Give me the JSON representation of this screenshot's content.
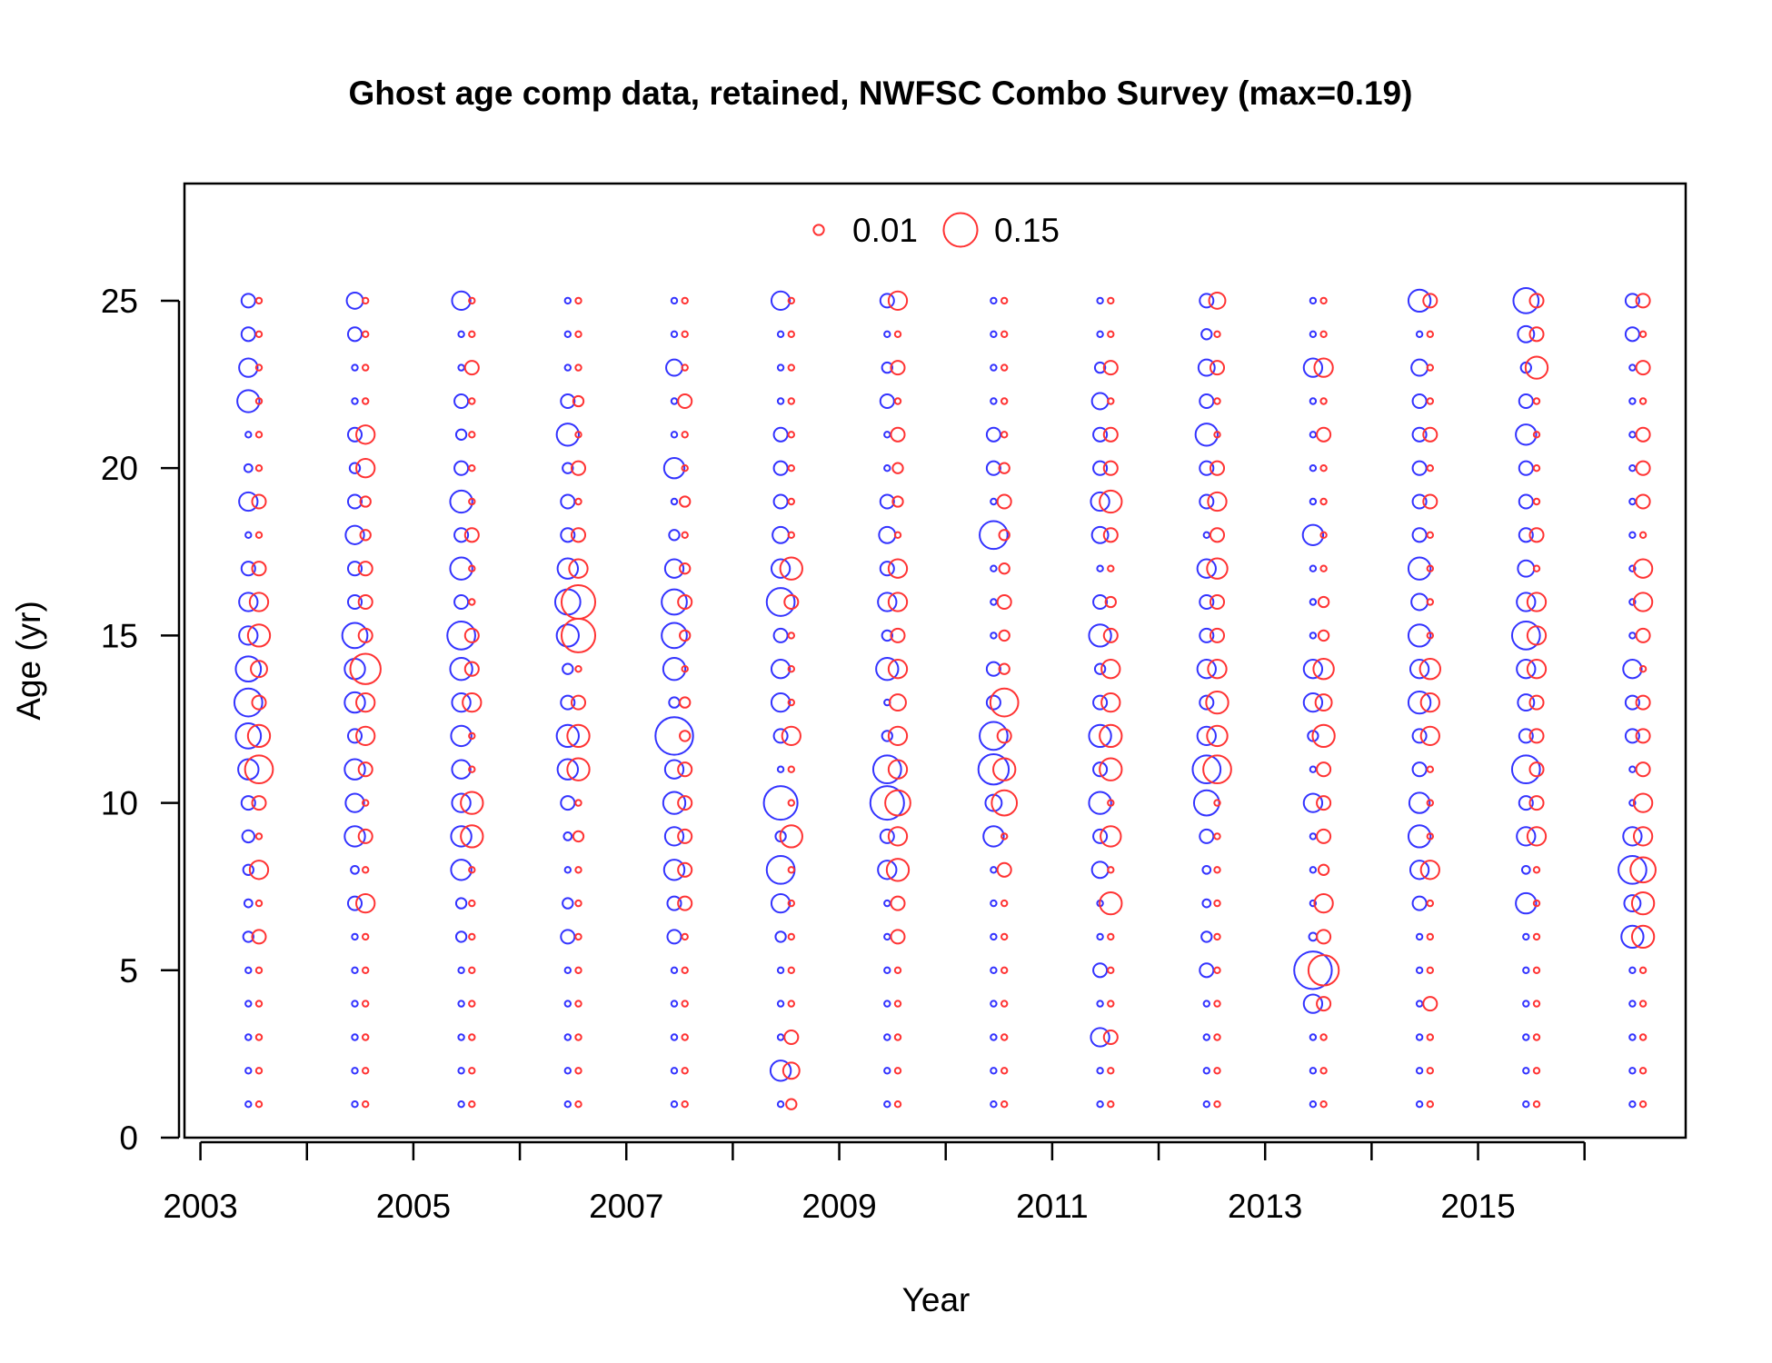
{
  "colors": {
    "series_a": "#3333ff",
    "series_b": "#ff3333",
    "axis": "#000000",
    "background": "#ffffff"
  },
  "chart_data": {
    "type": "scatter",
    "subtype": "bubble",
    "title": "Ghost age comp data, retained, NWFSC Combo Survey (max=0.19)",
    "xlabel": "Year",
    "ylabel": "Age (yr)",
    "xlim": [
      2002.85,
      2016.95
    ],
    "ylim": [
      0,
      28.5
    ],
    "x_ticks": [
      2003,
      2004,
      2005,
      2006,
      2007,
      2008,
      2009,
      2010,
      2011,
      2012,
      2013,
      2014,
      2015,
      2016
    ],
    "x_tick_labels": [
      "2003",
      "2005",
      "2007",
      "2009",
      "2011",
      "2013",
      "2015"
    ],
    "y_ticks": [
      0,
      5,
      10,
      15,
      20,
      25
    ],
    "y_tick_labels": [
      "0",
      "5",
      "10",
      "15",
      "20",
      "25"
    ],
    "legend": {
      "placement": "top-center",
      "entries": [
        {
          "label": "0.01",
          "value": 0.01
        },
        {
          "label": "0.15",
          "value": 0.15
        }
      ]
    },
    "max_value": 0.19,
    "grid": false,
    "ages": [
      1,
      2,
      3,
      4,
      5,
      6,
      7,
      8,
      9,
      10,
      11,
      12,
      13,
      14,
      15,
      16,
      17,
      18,
      19,
      20,
      21,
      22,
      23,
      24,
      25
    ],
    "series": [
      {
        "color_key": "series_a",
        "years": [
          2003.45,
          2004.45,
          2005.45,
          2006.45,
          2007.45,
          2008.45,
          2009.45,
          2010.45,
          2011.45,
          2012.45,
          2013.45,
          2014.45,
          2015.45,
          2016.45
        ],
        "values": [
          [
            0.002,
            0.002,
            0.002,
            0.002,
            0.002,
            0.01,
            0.005,
            0.01,
            0.015,
            0.02,
            0.05,
            0.08,
            0.1,
            0.08,
            0.04,
            0.04,
            0.02,
            0.002,
            0.04,
            0.005,
            0.002,
            0.06,
            0.04,
            0.02,
            0.02
          ],
          [
            0.002,
            0.002,
            0.002,
            0.002,
            0.002,
            0.002,
            0.02,
            0.005,
            0.05,
            0.04,
            0.05,
            0.02,
            0.05,
            0.05,
            0.08,
            0.02,
            0.02,
            0.04,
            0.02,
            0.01,
            0.02,
            0.002,
            0.002,
            0.02,
            0.03
          ],
          [
            0.002,
            0.002,
            0.002,
            0.002,
            0.002,
            0.01,
            0.01,
            0.05,
            0.05,
            0.04,
            0.04,
            0.05,
            0.04,
            0.06,
            0.1,
            0.02,
            0.06,
            0.02,
            0.06,
            0.02,
            0.01,
            0.02,
            0.002,
            0.002,
            0.04
          ],
          [
            0.002,
            0.002,
            0.002,
            0.002,
            0.002,
            0.02,
            0.01,
            0.002,
            0.005,
            0.02,
            0.05,
            0.06,
            0.02,
            0.01,
            0.06,
            0.08,
            0.05,
            0.02,
            0.02,
            0.01,
            0.06,
            0.02,
            0.002,
            0.002,
            0.002
          ],
          [
            0.002,
            0.002,
            0.002,
            0.002,
            0.002,
            0.02,
            0.02,
            0.05,
            0.04,
            0.06,
            0.04,
            0.19,
            0.01,
            0.06,
            0.08,
            0.08,
            0.04,
            0.01,
            0.002,
            0.05,
            0.002,
            0.002,
            0.03,
            0.002,
            0.002
          ],
          [
            0.002,
            0.05,
            0.002,
            0.002,
            0.002,
            0.01,
            0.04,
            0.1,
            0.01,
            0.15,
            0.002,
            0.02,
            0.04,
            0.04,
            0.02,
            0.1,
            0.04,
            0.03,
            0.02,
            0.02,
            0.02,
            0.002,
            0.002,
            0.002,
            0.04
          ],
          [
            0.002,
            0.002,
            0.002,
            0.002,
            0.002,
            0.002,
            0.002,
            0.04,
            0.02,
            0.15,
            0.1,
            0.01,
            0.002,
            0.06,
            0.01,
            0.04,
            0.02,
            0.03,
            0.02,
            0.002,
            0.002,
            0.02,
            0.01,
            0.002,
            0.02
          ],
          [
            0.002,
            0.002,
            0.002,
            0.002,
            0.002,
            0.002,
            0.002,
            0.002,
            0.05,
            0.03,
            0.12,
            0.1,
            0.02,
            0.02,
            0.002,
            0.002,
            0.002,
            0.1,
            0.002,
            0.02,
            0.02,
            0.002,
            0.002,
            0.002,
            0.002
          ],
          [
            0.002,
            0.002,
            0.04,
            0.002,
            0.02,
            0.002,
            0.002,
            0.03,
            0.02,
            0.06,
            0.02,
            0.06,
            0.02,
            0.01,
            0.06,
            0.02,
            0.002,
            0.03,
            0.04,
            0.02,
            0.02,
            0.03,
            0.01,
            0.002,
            0.002
          ],
          [
            0.002,
            0.002,
            0.002,
            0.002,
            0.02,
            0.01,
            0.005,
            0.005,
            0.02,
            0.08,
            0.1,
            0.04,
            0.02,
            0.04,
            0.02,
            0.02,
            0.04,
            0.002,
            0.02,
            0.02,
            0.06,
            0.02,
            0.03,
            0.01,
            0.02
          ],
          [
            0.002,
            0.002,
            0.002,
            0.04,
            0.19,
            0.005,
            0.002,
            0.002,
            0.002,
            0.04,
            0.002,
            0.01,
            0.04,
            0.04,
            0.002,
            0.002,
            0.002,
            0.05,
            0.002,
            0.002,
            0.002,
            0.002,
            0.04,
            0.002,
            0.002
          ],
          [
            0.002,
            0.002,
            0.002,
            0.002,
            0.002,
            0.002,
            0.02,
            0.04,
            0.06,
            0.05,
            0.02,
            0.02,
            0.06,
            0.04,
            0.06,
            0.03,
            0.06,
            0.02,
            0.02,
            0.02,
            0.02,
            0.02,
            0.03,
            0.002,
            0.06
          ],
          [
            0.002,
            0.002,
            0.002,
            0.002,
            0.002,
            0.002,
            0.05,
            0.005,
            0.04,
            0.02,
            0.1,
            0.02,
            0.03,
            0.04,
            0.1,
            0.04,
            0.03,
            0.02,
            0.02,
            0.02,
            0.05,
            0.02,
            0.01,
            0.03,
            0.08
          ],
          [
            0.002,
            0.002,
            0.002,
            0.002,
            0.002,
            0.06,
            0.03,
            0.1,
            0.04,
            0.002,
            0.002,
            0.02,
            0.02,
            0.04,
            0.002,
            0.002,
            0.002,
            0.002,
            0.002,
            0.002,
            0.002,
            0.002,
            0.002,
            0.02,
            0.02
          ]
        ]
      },
      {
        "color_key": "series_b",
        "years": [
          2003.55,
          2004.55,
          2005.55,
          2006.55,
          2007.55,
          2008.55,
          2009.55,
          2010.55,
          2011.55,
          2012.55,
          2013.55,
          2014.55,
          2015.55,
          2016.55
        ],
        "values": [
          [
            0.002,
            0.002,
            0.002,
            0.002,
            0.002,
            0.02,
            0.002,
            0.04,
            0.002,
            0.02,
            0.1,
            0.06,
            0.02,
            0.03,
            0.06,
            0.04,
            0.02,
            0.002,
            0.02,
            0.002,
            0.002,
            0.002,
            0.002,
            0.002,
            0.002
          ],
          [
            0.002,
            0.002,
            0.002,
            0.002,
            0.002,
            0.002,
            0.04,
            0.002,
            0.02,
            0.002,
            0.02,
            0.04,
            0.04,
            0.12,
            0.02,
            0.02,
            0.02,
            0.01,
            0.01,
            0.04,
            0.04,
            0.002,
            0.002,
            0.002,
            0.002
          ],
          [
            0.002,
            0.002,
            0.002,
            0.002,
            0.002,
            0.002,
            0.002,
            0.002,
            0.06,
            0.06,
            0.002,
            0.002,
            0.04,
            0.02,
            0.02,
            0.002,
            0.002,
            0.02,
            0.002,
            0.002,
            0.002,
            0.002,
            0.02,
            0.002,
            0.002
          ],
          [
            0.002,
            0.002,
            0.002,
            0.002,
            0.002,
            0.002,
            0.002,
            0.002,
            0.01,
            0.002,
            0.06,
            0.06,
            0.02,
            0.002,
            0.15,
            0.15,
            0.04,
            0.02,
            0.002,
            0.02,
            0.002,
            0.01,
            0.002,
            0.002,
            0.002
          ],
          [
            0.002,
            0.002,
            0.002,
            0.002,
            0.002,
            0.002,
            0.02,
            0.02,
            0.02,
            0.02,
            0.02,
            0.01,
            0.01,
            0.002,
            0.01,
            0.02,
            0.01,
            0.002,
            0.01,
            0.002,
            0.002,
            0.02,
            0.002,
            0.002,
            0.002
          ],
          [
            0.01,
            0.03,
            0.02,
            0.002,
            0.002,
            0.002,
            0.002,
            0.002,
            0.06,
            0.002,
            0.002,
            0.04,
            0.002,
            0.002,
            0.002,
            0.02,
            0.06,
            0.002,
            0.002,
            0.002,
            0.002,
            0.002,
            0.002,
            0.002,
            0.002
          ],
          [
            0.002,
            0.002,
            0.002,
            0.002,
            0.002,
            0.02,
            0.02,
            0.06,
            0.04,
            0.08,
            0.04,
            0.04,
            0.03,
            0.04,
            0.02,
            0.04,
            0.04,
            0.002,
            0.01,
            0.01,
            0.02,
            0.002,
            0.02,
            0.002,
            0.04
          ],
          [
            0.002,
            0.002,
            0.002,
            0.002,
            0.002,
            0.002,
            0.002,
            0.02,
            0.002,
            0.08,
            0.06,
            0.02,
            0.1,
            0.01,
            0.01,
            0.02,
            0.01,
            0.01,
            0.02,
            0.01,
            0.002,
            0.002,
            0.002,
            0.002,
            0.002
          ],
          [
            0.002,
            0.002,
            0.02,
            0.002,
            0.002,
            0.002,
            0.06,
            0.002,
            0.05,
            0.002,
            0.06,
            0.06,
            0.04,
            0.04,
            0.02,
            0.01,
            0.002,
            0.02,
            0.06,
            0.02,
            0.02,
            0.002,
            0.02,
            0.002,
            0.002
          ],
          [
            0.002,
            0.002,
            0.002,
            0.002,
            0.002,
            0.002,
            0.002,
            0.002,
            0.002,
            0.002,
            0.1,
            0.05,
            0.06,
            0.04,
            0.02,
            0.02,
            0.05,
            0.02,
            0.04,
            0.02,
            0.002,
            0.002,
            0.02,
            0.002,
            0.03
          ],
          [
            0.002,
            0.002,
            0.002,
            0.02,
            0.12,
            0.02,
            0.04,
            0.01,
            0.02,
            0.02,
            0.02,
            0.06,
            0.03,
            0.05,
            0.01,
            0.01,
            0.002,
            0.002,
            0.002,
            0.002,
            0.02,
            0.002,
            0.04,
            0.002,
            0.002
          ],
          [
            0.002,
            0.002,
            0.002,
            0.02,
            0.002,
            0.002,
            0.002,
            0.04,
            0.002,
            0.002,
            0.002,
            0.04,
            0.04,
            0.05,
            0.002,
            0.002,
            0.002,
            0.002,
            0.02,
            0.002,
            0.02,
            0.002,
            0.002,
            0.002,
            0.02
          ],
          [
            0.002,
            0.002,
            0.002,
            0.002,
            0.002,
            0.002,
            0.002,
            0.002,
            0.04,
            0.02,
            0.02,
            0.02,
            0.02,
            0.04,
            0.04,
            0.04,
            0.002,
            0.02,
            0.002,
            0.002,
            0.002,
            0.002,
            0.06,
            0.02,
            0.02
          ],
          [
            0.002,
            0.002,
            0.002,
            0.002,
            0.002,
            0.06,
            0.06,
            0.08,
            0.04,
            0.04,
            0.02,
            0.02,
            0.02,
            0.002,
            0.02,
            0.04,
            0.04,
            0.002,
            0.02,
            0.02,
            0.02,
            0.002,
            0.02,
            0.002,
            0.02
          ]
        ]
      }
    ]
  }
}
